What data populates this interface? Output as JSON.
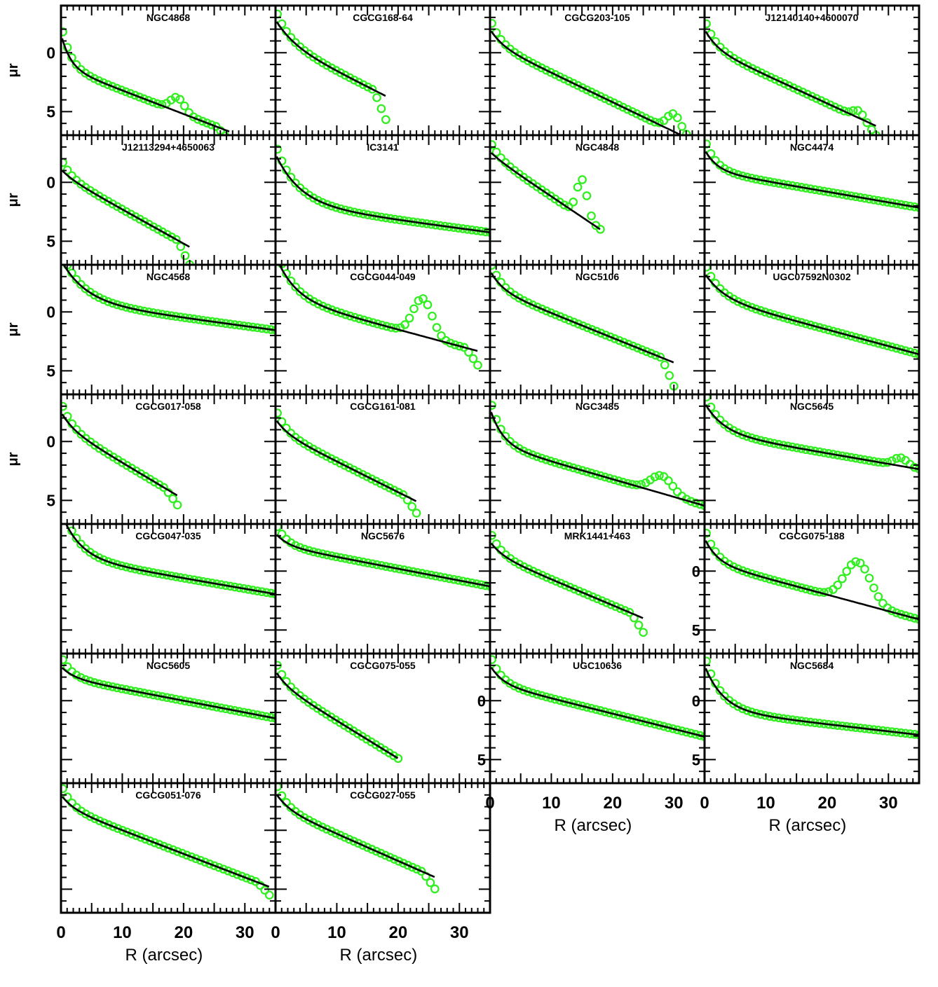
{
  "axis_text": {
    "x_label": "R (arcsec)",
    "y_label": "μr",
    "x_ticks": [
      "0",
      "10",
      "20",
      "30"
    ],
    "y_ticks": [
      "0",
      "5"
    ]
  },
  "colors": {
    "data_points": "#33ee22",
    "model_line": "#000000",
    "frame": "#000000",
    "background": "#ffffff"
  },
  "chart_data": {
    "type": "scatter",
    "x_unit": "arcsec",
    "xlim": [
      0,
      35
    ],
    "ylim_inverted": [
      -4,
      7
    ],
    "grid": false,
    "layout": "7x4 grid of small multiples, shared axes",
    "panels": [
      {
        "name": "NGC4868",
        "row": 0,
        "col": 0,
        "fit": {
          "a": 1.2,
          "b": 0.2,
          "c": 2.8,
          "s": 1.5
        },
        "rmax": 27.5,
        "bump": {
          "r": 19,
          "h": 1.2,
          "w": 1.6
        },
        "tail_drop": 0.8
      },
      {
        "name": "CGCG168-64",
        "row": 0,
        "col": 1,
        "fit": {
          "a": -1.0,
          "b": 0.26,
          "c": 1.8,
          "s": 3
        },
        "rmax": 18,
        "bump": null,
        "tail_drop": 2.0
      },
      {
        "name": "CGCG203-105",
        "row": 0,
        "col": 2,
        "fit": {
          "a": -0.8,
          "b": 0.25,
          "c": 1.2,
          "s": 2
        },
        "rmax": 35,
        "bump": {
          "r": 30,
          "h": 1.5,
          "w": 1.6
        },
        "tail_drop": 0.6
      },
      {
        "name": "J12140140+4600070",
        "row": 0,
        "col": 3,
        "fit": {
          "a": -0.5,
          "b": 0.24,
          "c": 1.5,
          "s": 2
        },
        "rmax": 28,
        "bump": {
          "r": 25,
          "h": 0.6,
          "w": 1.2
        },
        "tail_drop": 0.8
      },
      {
        "name": "J12113294+4650063",
        "row": 1,
        "col": 0,
        "fit": {
          "a": -0.6,
          "b": 0.29,
          "c": 0.5,
          "s": 2
        },
        "rmax": 21,
        "bump": null,
        "tail_drop": 1.5
      },
      {
        "name": "IC3141",
        "row": 1,
        "col": 1,
        "fit": {
          "a": 1.8,
          "b": 0.07,
          "c": 4.2,
          "s": 4
        },
        "rmax": 35,
        "bump": null,
        "tail_drop": 0
      },
      {
        "name": "NGC4848",
        "row": 1,
        "col": 2,
        "fit": {
          "a": -2.3,
          "b": 0.35,
          "c": 0.3,
          "s": 2
        },
        "rmax": 18,
        "bump": {
          "r": 15,
          "h": 3.2,
          "w": 1.2
        },
        "tail_drop": 0
      },
      {
        "name": "NGC4474",
        "row": 1,
        "col": 3,
        "fit": {
          "a": -1.0,
          "b": 0.09,
          "c": 1.8,
          "s": 2
        },
        "rmax": 35,
        "bump": null,
        "tail_drop": 0
      },
      {
        "name": "NGC4568",
        "row": 2,
        "col": 0,
        "fit": {
          "a": -0.9,
          "b": 0.07,
          "c": 3.5,
          "s": 4
        },
        "rmax": 35,
        "bump": null,
        "tail_drop": 0
      },
      {
        "name": "CGCG044-049",
        "row": 2,
        "col": 1,
        "fit": {
          "a": -1.3,
          "b": 0.14,
          "c": 3.5,
          "s": 3
        },
        "rmax": 33,
        "bump": {
          "r": 24,
          "h": 3.2,
          "w": 2.2
        },
        "tail_drop": 1.2
      },
      {
        "name": "NGC5106",
        "row": 2,
        "col": 2,
        "fit": {
          "a": -2.0,
          "b": 0.21,
          "c": 1.5,
          "s": 2
        },
        "rmax": 30,
        "bump": null,
        "tail_drop": 2.0
      },
      {
        "name": "UGC07592N0302",
        "row": 2,
        "col": 3,
        "fit": {
          "a": -1.3,
          "b": 0.14,
          "c": 2.0,
          "s": 3
        },
        "rmax": 35,
        "bump": null,
        "tail_drop": 0
      },
      {
        "name": "CGCG017-058",
        "row": 3,
        "col": 0,
        "fit": {
          "a": -1.3,
          "b": 0.31,
          "c": 1.2,
          "s": 2
        },
        "rmax": 19,
        "bump": null,
        "tail_drop": 0.8
      },
      {
        "name": "CGCG161-081",
        "row": 3,
        "col": 1,
        "fit": {
          "a": -0.9,
          "b": 0.26,
          "c": 1.0,
          "s": 2
        },
        "rmax": 23,
        "bump": null,
        "tail_drop": 1.0
      },
      {
        "name": "NGC3485",
        "row": 3,
        "col": 2,
        "fit": {
          "a": 0.2,
          "b": 0.15,
          "c": 3.0,
          "s": 2
        },
        "rmax": 35,
        "bump": {
          "r": 28,
          "h": 1.5,
          "w": 2.5
        },
        "tail_drop": 0
      },
      {
        "name": "NGC5645",
        "row": 3,
        "col": 3,
        "fit": {
          "a": -0.8,
          "b": 0.09,
          "c": 2.5,
          "s": 3
        },
        "rmax": 35,
        "bump": {
          "r": 32,
          "h": 0.7,
          "w": 1.6
        },
        "tail_drop": 0
      },
      {
        "name": "CGCG047-035",
        "row": 4,
        "col": 0,
        "fit": {
          "a": -1.2,
          "b": 0.09,
          "c": 3.8,
          "s": 3
        },
        "rmax": 35,
        "bump": null,
        "tail_drop": 0
      },
      {
        "name": "NGC5676",
        "row": 4,
        "col": 1,
        "fit": {
          "a": -2.2,
          "b": 0.1,
          "c": 1.0,
          "s": 2
        },
        "rmax": 35,
        "bump": null,
        "tail_drop": 0
      },
      {
        "name": "MRK1441+463",
        "row": 4,
        "col": 2,
        "fit": {
          "a": -1.5,
          "b": 0.22,
          "c": 1.0,
          "s": 2
        },
        "rmax": 25,
        "bump": null,
        "tail_drop": 1.2
      },
      {
        "name": "CGCG075-188",
        "row": 4,
        "col": 3,
        "fit": {
          "a": -0.8,
          "b": 0.14,
          "c": 2.0,
          "s": 2
        },
        "rmax": 35,
        "bump": {
          "r": 25,
          "h": 3.5,
          "w": 3.0
        },
        "tail_drop": 0
      },
      {
        "name": "NGC5605",
        "row": 5,
        "col": 0,
        "fit": {
          "a": -2.0,
          "b": 0.1,
          "c": 0.9,
          "s": 2
        },
        "rmax": 35,
        "bump": null,
        "tail_drop": 0
      },
      {
        "name": "CGCG075-055",
        "row": 5,
        "col": 1,
        "fit": {
          "a": -1.5,
          "b": 0.32,
          "c": 1.0,
          "s": 2
        },
        "rmax": 20,
        "bump": null,
        "tail_drop": 0
      },
      {
        "name": "UGC10636",
        "row": 5,
        "col": 2,
        "fit": {
          "a": -1.5,
          "b": 0.13,
          "c": 1.5,
          "s": 2
        },
        "rmax": 35,
        "bump": null,
        "tail_drop": 0
      },
      {
        "name": "NGC5684",
        "row": 5,
        "col": 3,
        "fit": {
          "a": 0.8,
          "b": 0.06,
          "c": 3.8,
          "s": 3
        },
        "rmax": 35,
        "bump": null,
        "tail_drop": 0
      },
      {
        "name": "CGCG051-076",
        "row": 6,
        "col": 0,
        "fit": {
          "a": -2.0,
          "b": 0.2,
          "c": 1.0,
          "s": 2
        },
        "rmax": 34,
        "bump": null,
        "tail_drop": 0.7
      },
      {
        "name": "CGCG027-055",
        "row": 6,
        "col": 1,
        "fit": {
          "a": -2.0,
          "b": 0.23,
          "c": 1.2,
          "s": 2
        },
        "rmax": 26,
        "bump": null,
        "tail_drop": 1.0
      }
    ]
  }
}
